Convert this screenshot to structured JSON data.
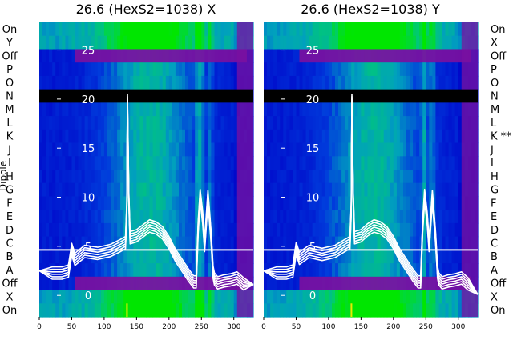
{
  "chart_data": [
    {
      "type": "heatmap",
      "title": "26.6 (HexS2=1038) X",
      "ylabel": "Dipole",
      "categories": [
        "On",
        "Y",
        "Off",
        "P",
        "O",
        "N",
        "M",
        "L",
        "K",
        "J",
        "I",
        "H",
        "G",
        "F",
        "E",
        "D",
        "C",
        "B",
        "A",
        "Off",
        "X",
        "On"
      ],
      "x_ticks": [
        "0",
        "50",
        "100",
        "150",
        "200",
        "250",
        "300"
      ],
      "xlim": [
        0,
        330
      ],
      "overlay": {
        "type": "line",
        "y_ticks": [
          "0",
          "5",
          "10",
          "15",
          "20",
          "25"
        ],
        "ylim": [
          -3,
          27
        ],
        "series_count": 6,
        "x": [
          0,
          20,
          35,
          45,
          50,
          55,
          70,
          90,
          110,
          125,
          133,
          135,
          136,
          138,
          140,
          150,
          160,
          170,
          180,
          190,
          200,
          210,
          220,
          230,
          238,
          242,
          245,
          248,
          252,
          255,
          260,
          265,
          268,
          270,
          275,
          285,
          295,
          305,
          315,
          330
        ],
        "y": [
          2.5,
          2.4,
          2.4,
          2.6,
          4.8,
          3.8,
          4.6,
          4.4,
          4.7,
          5.2,
          5.5,
          9,
          20,
          10,
          6,
          6.2,
          6.7,
          7.2,
          7,
          6.5,
          5.5,
          4.2,
          3.2,
          2.2,
          1.5,
          1.5,
          7,
          10.3,
          8,
          5.2,
          10.2,
          6,
          2.5,
          1.8,
          1.4,
          1.6,
          1.7,
          1.9,
          1.3,
          1.1
        ]
      }
    },
    {
      "type": "heatmap",
      "title": "26.6 (HexS2=1038) Y",
      "categories": [
        "On",
        "X",
        "Off",
        "P",
        "O",
        "N",
        "M",
        "L",
        "K **",
        "J",
        "I",
        "H",
        "G",
        "F",
        "E",
        "D",
        "C",
        "B",
        "A",
        "Off",
        "X",
        "On"
      ],
      "x_ticks": [
        "0",
        "50",
        "100",
        "150",
        "200",
        "250",
        "300"
      ],
      "xlim": [
        0,
        330
      ],
      "overlay": {
        "type": "line",
        "y_ticks": [
          "0",
          "5",
          "10",
          "15",
          "20",
          "25"
        ],
        "ylim": [
          -3,
          27
        ],
        "series_count": 6,
        "x": [
          0,
          20,
          35,
          45,
          50,
          55,
          70,
          90,
          110,
          125,
          133,
          135,
          136,
          138,
          140,
          150,
          160,
          170,
          180,
          190,
          200,
          210,
          220,
          230,
          238,
          242,
          245,
          248,
          252,
          255,
          260,
          265,
          268,
          270,
          275,
          285,
          295,
          305,
          315,
          330
        ],
        "y": [
          2.5,
          2.4,
          2.4,
          2.6,
          4.9,
          3.9,
          4.6,
          4.3,
          4.6,
          5.2,
          5.5,
          9,
          20,
          10,
          6,
          6.2,
          6.8,
          7.2,
          7,
          6.5,
          5.5,
          4.2,
          3.2,
          2.2,
          1.5,
          1.5,
          7,
          10.3,
          8,
          5.2,
          10.2,
          6,
          2.5,
          1.8,
          1.4,
          1.6,
          1.7,
          1.9,
          1.3,
          0.1
        ]
      }
    }
  ],
  "colors": {
    "low": "#0000c8",
    "mid": "#00a0c0",
    "high": "#00e000",
    "purple": "#7a10a0",
    "yellow": "#e8e800",
    "black": "#000000",
    "white": "#ffffff"
  }
}
